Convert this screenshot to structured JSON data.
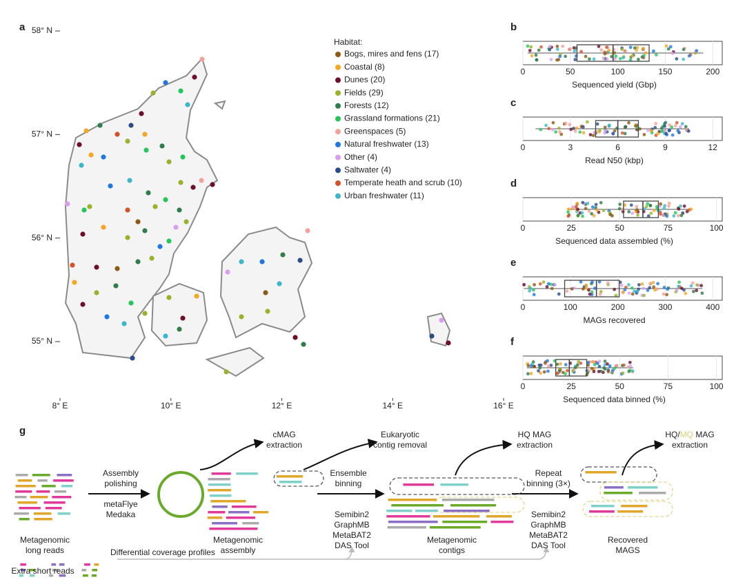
{
  "figure": {
    "map": {
      "label": "a",
      "lon_lim": [
        8,
        16
      ],
      "lat_lim": [
        55,
        58
      ],
      "lon_ticks": [
        {
          "value": 8,
          "label": "8° E"
        },
        {
          "value": 10,
          "label": "10° E"
        },
        {
          "value": 12,
          "label": "12° E"
        },
        {
          "value": 14,
          "label": "14° E"
        },
        {
          "value": 16,
          "label": "16° E"
        }
      ],
      "lat_ticks": [
        {
          "value": 58,
          "label": "58° N"
        },
        {
          "value": 57,
          "label": "57° N"
        },
        {
          "value": 56,
          "label": "56° N"
        },
        {
          "value": 55,
          "label": "55° N"
        }
      ],
      "legend_title": "Habitat:",
      "habitats": [
        {
          "name": "Bogs, mires and fens (17)",
          "color": "#8b5a14"
        },
        {
          "name": "Coastal (8)",
          "color": "#f5a623"
        },
        {
          "name": "Dunes (20)",
          "color": "#6b0f2a"
        },
        {
          "name": "Fields (29)",
          "color": "#9ab22b"
        },
        {
          "name": "Forests (12)",
          "color": "#2e7d4a"
        },
        {
          "name": "Grassland formations (21)",
          "color": "#27c45a"
        },
        {
          "name": "Greenspaces (5)",
          "color": "#f4a19a"
        },
        {
          "name": "Natural freshwater (13)",
          "color": "#1f78e0"
        },
        {
          "name": "Other (4)",
          "color": "#d99ef0"
        },
        {
          "name": "Saltwater (4)",
          "color": "#2c4b8a"
        },
        {
          "name": "Temperate heath and scrub (10)",
          "color": "#d4522a"
        },
        {
          "name": "Urban freshwater (11)",
          "color": "#3eb6c9"
        }
      ]
    },
    "panels": [
      {
        "label": "b",
        "xlabel": "Sequenced yield (Gbp)",
        "xlim": [
          0,
          210
        ],
        "xticks": [
          0,
          50,
          100,
          150,
          200
        ],
        "box": {
          "whisker_low": 5,
          "q1": 57,
          "median": 95,
          "q3": 133,
          "whisker_high": 190
        }
      },
      {
        "label": "c",
        "xlabel": "Read N50 (kbp)",
        "xlim": [
          0,
          12.6
        ],
        "xticks": [
          0,
          3,
          6,
          9,
          12
        ],
        "box": {
          "whisker_low": 0.8,
          "q1": 4.6,
          "median": 6.0,
          "q3": 7.3,
          "whisker_high": 10.5
        }
      },
      {
        "label": "d",
        "xlabel": "Sequenced data assembled (%)",
        "xlim": [
          0,
          103
        ],
        "xticks": [
          0,
          25,
          50,
          75,
          100
        ],
        "box": {
          "whisker_low": 23,
          "q1": 52,
          "median": 62,
          "q3": 70,
          "whisker_high": 87
        }
      },
      {
        "label": "e",
        "xlabel": "MAGs recovered",
        "xlim": [
          0,
          420
        ],
        "xticks": [
          0,
          100,
          200,
          300,
          400
        ],
        "box": {
          "whisker_low": 2,
          "q1": 88,
          "median": 155,
          "q3": 203,
          "whisker_high": 378
        }
      },
      {
        "label": "f",
        "xlabel": "Sequenced data binned (%)",
        "xlim": [
          0,
          103
        ],
        "xticks": [
          0,
          25,
          50,
          75,
          100
        ],
        "box": {
          "whisker_low": 2,
          "q1": 17,
          "median": 24,
          "q3": 33,
          "whisker_high": 57
        }
      }
    ],
    "workflow": {
      "label": "g",
      "steps": [
        {
          "lines": [
            "cMAG",
            "extraction"
          ]
        },
        {
          "lines": [
            "Eukaryotic",
            "contig removal"
          ]
        },
        {
          "lines": [
            "HQ MAG",
            "extraction"
          ]
        },
        {
          "lines": [
            {
              "parts": [
                "HQ/",
                "MQ",
                " MAG"
              ]
            },
            "extraction"
          ]
        },
        {
          "lines": [
            "Assembly",
            "polishing"
          ]
        },
        {
          "lines": [
            "metaFlye",
            "Medaka"
          ]
        },
        {
          "lines": [
            "Ensemble",
            "binning"
          ]
        },
        {
          "lines": [
            "Semibin2",
            "GraphMB",
            "MetaBAT2",
            "DAS Tool"
          ]
        },
        {
          "lines": [
            "Repeat",
            "binning (3×)"
          ]
        },
        {
          "lines": [
            "Semibin2",
            "GraphMB",
            "MetaBAT2",
            "DAS Tool"
          ]
        },
        {
          "lines": [
            "Metagenomic",
            "long reads"
          ]
        },
        {
          "lines": [
            "Metagenomic",
            "assembly"
          ]
        },
        {
          "lines": [
            "Metagenomic",
            "contigs"
          ]
        },
        {
          "lines": [
            "Recovered",
            "MAGS"
          ]
        },
        {
          "lines": [
            "Differential coverage profiles"
          ]
        },
        {
          "lines": [
            "Extra short reads"
          ]
        }
      ]
    }
  }
}
